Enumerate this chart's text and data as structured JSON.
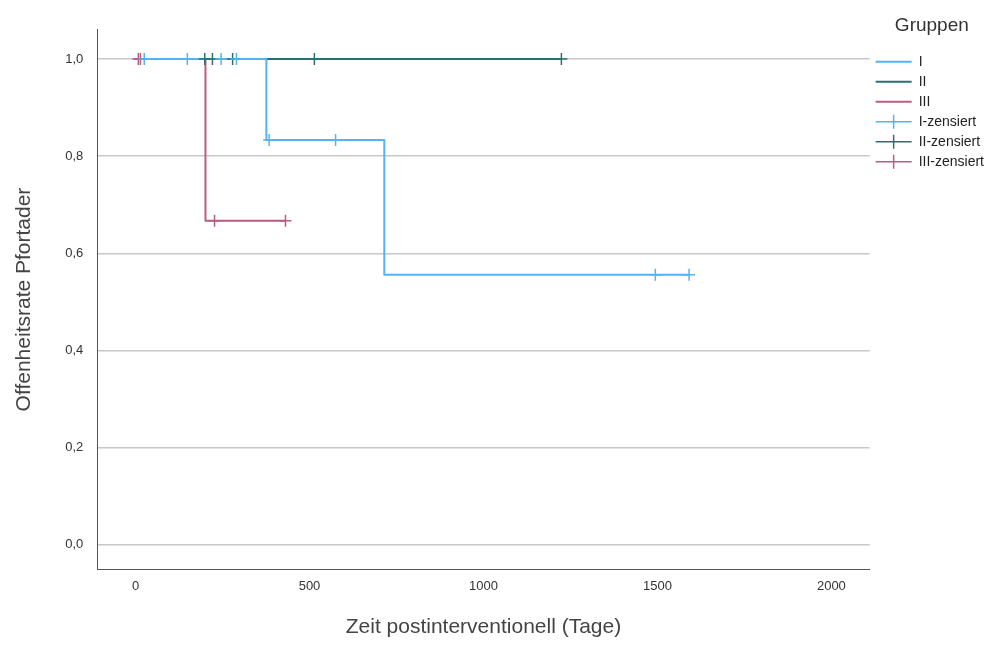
{
  "chart_data": {
    "type": "step",
    "xlabel": "Zeit postinterventionell (Tage)",
    "ylabel": "Offenheitsrate Pfortader",
    "legend_title": "Gruppen",
    "series": [
      {
        "name": "I",
        "color": "#55b4f0",
        "x": [
          0,
          376,
          715,
          1591
        ],
        "values": [
          1,
          0.833,
          0.556,
          0.556
        ]
      },
      {
        "name": "II",
        "color": "#2a7070",
        "x": [
          0,
          1224
        ],
        "values": [
          1,
          1
        ]
      },
      {
        "name": "III",
        "color": "#b85c85",
        "x": [
          0,
          201,
          431
        ],
        "values": [
          1,
          0.667,
          0.667
        ]
      },
      {
        "name": "I-zensiert",
        "type": "scatter",
        "marker": "cross",
        "color": "#55b4f0",
        "x": [
          25,
          149,
          246,
          290,
          384,
          575,
          1494,
          1591
        ],
        "values": [
          1,
          1,
          1,
          1,
          0.833,
          0.833,
          0.556,
          0.556
        ]
      },
      {
        "name": "II-zensiert",
        "type": "scatter",
        "marker": "cross",
        "color": "#2a7070",
        "x": [
          199,
          221,
          279,
          514,
          1224
        ],
        "values": [
          1,
          1,
          1,
          1,
          1
        ]
      },
      {
        "name": "III-zensiert",
        "type": "scatter",
        "marker": "cross",
        "color": "#b85c85",
        "x": [
          8,
          14,
          227,
          431
        ],
        "values": [
          1,
          1,
          0.667,
          0.667
        ]
      }
    ],
    "xlim": [
      -110,
      2110
    ],
    "xticks": [
      0,
      500,
      1000,
      1500,
      2000
    ],
    "ylim": [
      -0.05,
      1.06
    ],
    "yticks": [
      {
        "value": 0,
        "label": "0,0"
      },
      {
        "value": 0.2,
        "label": "0,2"
      },
      {
        "value": 0.4,
        "label": "0,4"
      },
      {
        "value": 0.6,
        "label": "0,6"
      },
      {
        "value": 0.8,
        "label": "0,8"
      },
      {
        "value": 1,
        "label": "1,0"
      }
    ],
    "grid": "y",
    "legend": "top right"
  }
}
